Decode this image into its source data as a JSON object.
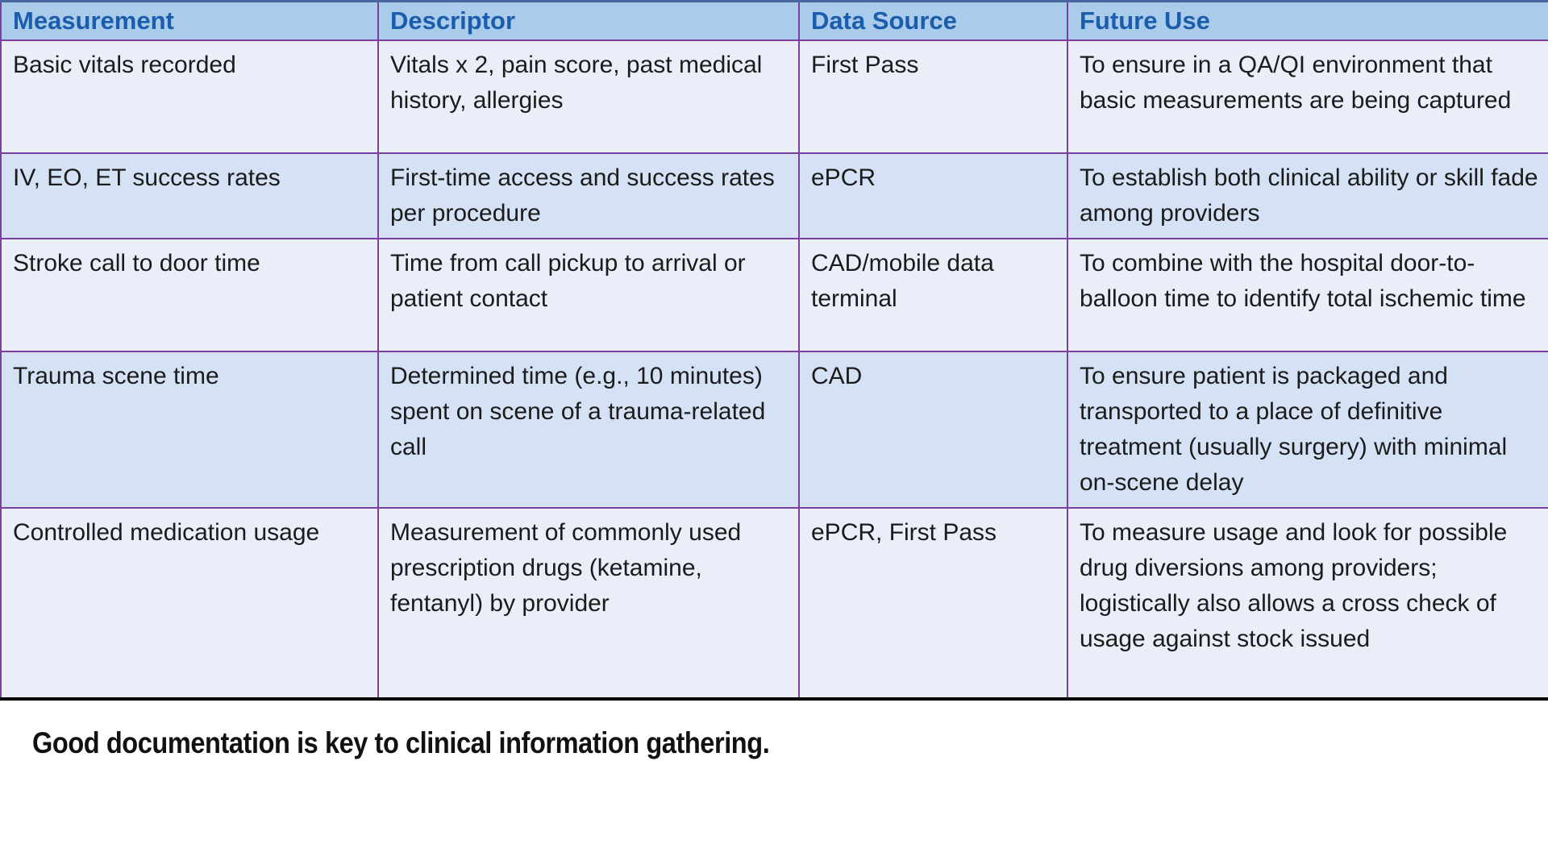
{
  "table": {
    "columns": [
      "Measurement",
      "Descriptor",
      "Data Source",
      "Future Use"
    ],
    "rows": [
      {
        "measurement": "Basic vitals recorded",
        "descriptor": "Vitals x 2, pain score, past medical history, allergies",
        "data_source": "First Pass",
        "future_use": "To ensure in a QA/QI environment that basic measurements are being captured"
      },
      {
        "measurement": "IV, EO, ET success rates",
        "descriptor": "First-time access and success rates per procedure",
        "data_source": "ePCR",
        "future_use": "To establish both clinical ability or skill fade among providers"
      },
      {
        "measurement": "Stroke call to door time",
        "descriptor": "Time from call pickup to arrival or patient contact",
        "data_source": "CAD/mobile data terminal",
        "future_use": "To combine with the hospital door-to-balloon time to identify total ischemic time"
      },
      {
        "measurement": "Trauma scene time",
        "descriptor": "Determined time (e.g., 10 minutes) spent on scene of a trauma-related call",
        "data_source": "CAD",
        "future_use": "To ensure patient is packaged and transported to a place of definitive treatment (usually surgery) with minimal on-scene delay"
      },
      {
        "measurement": "Controlled medication usage",
        "descriptor": "Measurement of commonly used prescription drugs (ketamine, fentanyl) by provider",
        "data_source": "ePCR, First Pass",
        "future_use": "To measure usage and look for possible drug diversions among providers; logistically also allows a cross check of usage against stock issued"
      }
    ]
  },
  "caption": "Good documentation is key to clinical information gathering.",
  "colors": {
    "header_bg": "#aacbe9",
    "header_text": "#1a5dad",
    "row_light_bg": "#eaeef9",
    "row_dark_bg": "#d5e2f5",
    "grid_border": "#7b3fa0",
    "bottom_border": "#000000",
    "body_text": "#1b1b1b"
  }
}
